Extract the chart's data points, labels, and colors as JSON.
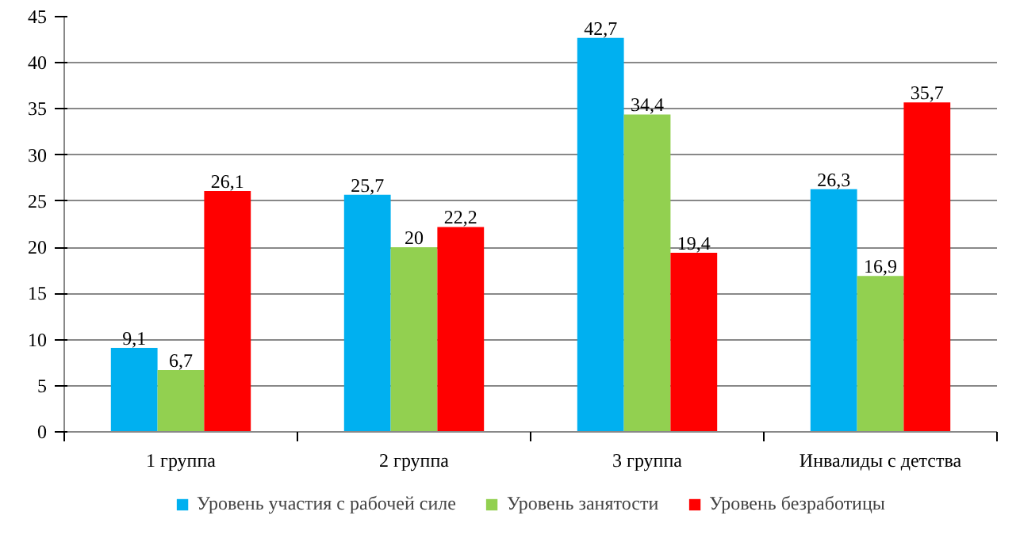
{
  "chart_data": {
    "type": "bar",
    "categories": [
      "1 группа",
      "2 группа",
      "3 группа",
      "Инвалиды с детства"
    ],
    "series": [
      {
        "name": "Уровень участия с рабочей силе",
        "color": "#00b0f0",
        "values": [
          9.1,
          25.7,
          42.7,
          26.3
        ],
        "value_labels": [
          "9,1",
          "25,7",
          "42,7",
          "26,3"
        ]
      },
      {
        "name": "Уровень занятости",
        "color": "#92d050",
        "values": [
          6.7,
          20,
          34.4,
          16.9
        ],
        "value_labels": [
          "6,7",
          "20",
          "34,4",
          "16,9"
        ]
      },
      {
        "name": "Уровень безработицы",
        "color": "#ff0000",
        "values": [
          26.1,
          22.2,
          19.4,
          35.7
        ],
        "value_labels": [
          "26,1",
          "22,2",
          "19,4",
          "35,7"
        ]
      }
    ],
    "ylim": [
      0,
      45
    ],
    "yticks": [
      0,
      5,
      10,
      15,
      20,
      25,
      30,
      35,
      40,
      45
    ],
    "grid": "y",
    "legend": "bottom"
  }
}
